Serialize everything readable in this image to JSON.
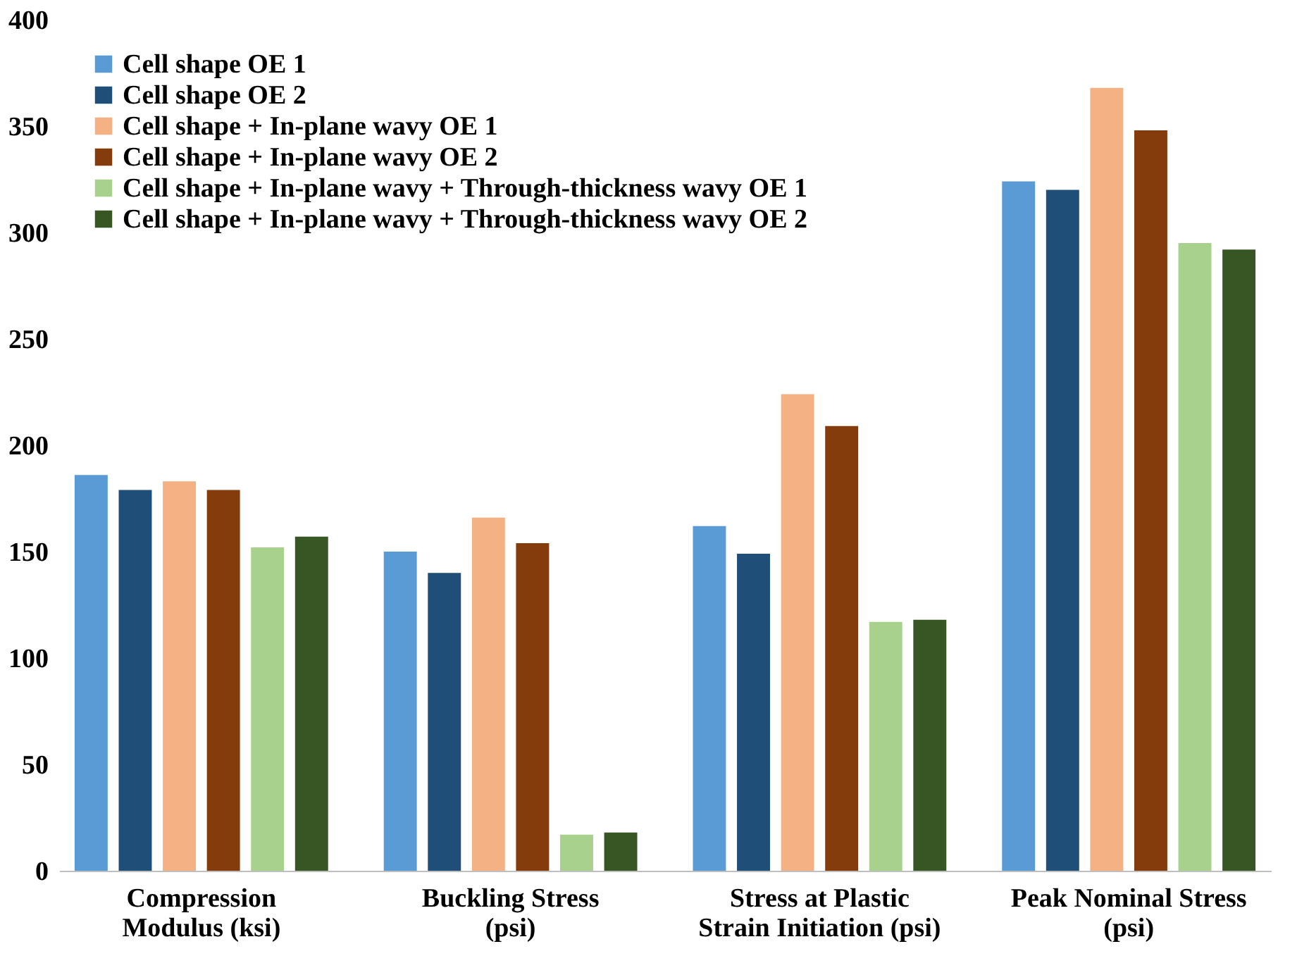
{
  "chart_data": {
    "type": "bar",
    "categories": [
      "Compression\nModulus (ksi)",
      "Buckling Stress\n(psi)",
      "Stress at Plastic\nStrain Initiation (psi)",
      "Peak Nominal Stress\n(psi)"
    ],
    "series": [
      {
        "name": "Cell shape OE 1",
        "color": "#5b9bd5",
        "values": [
          186,
          150,
          162,
          324
        ]
      },
      {
        "name": "Cell shape OE 2",
        "color": "#1f4e79",
        "values": [
          179,
          140,
          149,
          320
        ]
      },
      {
        "name": "Cell shape + In-plane wavy OE 1",
        "color": "#f4b183",
        "values": [
          183,
          166,
          224,
          368
        ]
      },
      {
        "name": "Cell shape + In-plane wavy OE 2",
        "color": "#843c0c",
        "values": [
          179,
          154,
          209,
          348
        ]
      },
      {
        "name": "Cell shape + In-plane wavy + Through-thickness wavy OE 1",
        "color": "#a9d18e",
        "values": [
          152,
          17,
          117,
          295
        ]
      },
      {
        "name": "Cell shape + In-plane wavy + Through-thickness wavy OE 2",
        "color": "#375623",
        "values": [
          157,
          18,
          118,
          292
        ]
      }
    ],
    "ylim": [
      0,
      400
    ],
    "yticks": [
      0,
      50,
      100,
      150,
      200,
      250,
      300,
      350,
      400
    ],
    "grid": false,
    "legend": "top left"
  }
}
